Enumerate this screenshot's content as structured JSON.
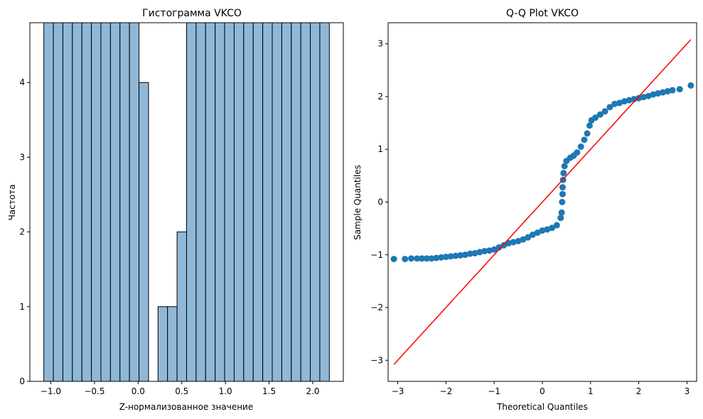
{
  "colors": {
    "bar_fill": "#8fb8d8",
    "bar_edge": "#000000",
    "point": "#1f77b4",
    "ref_line": "#ff0000",
    "axes": "#000000",
    "background": "#ffffff"
  },
  "chart_data": [
    {
      "type": "bar",
      "subtype": "histogram",
      "title": "Гистограмма VKCO",
      "xlabel": "Z-нормализованное значение",
      "ylabel": "Частота",
      "xlim": [
        -1.24,
        2.35
      ],
      "ylim": [
        0,
        4.8
      ],
      "xticks": [
        -1.0,
        -0.5,
        0.0,
        0.5,
        1.0,
        1.5,
        2.0
      ],
      "xtick_labels": [
        "−1.0",
        "−0.5",
        "0.0",
        "0.5",
        "1.0",
        "1.5",
        "2.0"
      ],
      "yticks": [
        0,
        1,
        2,
        3,
        4
      ],
      "ytick_labels": [
        "0",
        "1",
        "2",
        "3",
        "4"
      ],
      "bin_edges": [
        -1.08,
        -0.971,
        -0.862,
        -0.753,
        -0.644,
        -0.535,
        -0.426,
        -0.317,
        -0.208,
        -0.099,
        0.01,
        0.119,
        0.228,
        0.337,
        0.446,
        0.555,
        0.664,
        0.773,
        0.882,
        0.991,
        1.1,
        1.209,
        1.318,
        1.427,
        1.536,
        1.645,
        1.754,
        1.863,
        1.972,
        2.081,
        2.19
      ],
      "counts": [
        5,
        5,
        5,
        5,
        5,
        5,
        5,
        5,
        5,
        5,
        4,
        null,
        1,
        1,
        2,
        5,
        5,
        5,
        5,
        5,
        5,
        5,
        5,
        5,
        5,
        5,
        5,
        5,
        5,
        5
      ],
      "grid": false
    },
    {
      "type": "scatter",
      "subtype": "qq-plot",
      "title": "Q-Q Plot VKCO",
      "xlabel": "Theoretical Quantiles",
      "ylabel": "Sample Quantiles",
      "xlim": [
        -3.2,
        3.2
      ],
      "ylim": [
        -3.4,
        3.4
      ],
      "xticks": [
        -3,
        -2,
        -1,
        0,
        1,
        2,
        3
      ],
      "xtick_labels": [
        "−3",
        "−2",
        "−1",
        "0",
        "1",
        "2",
        "3"
      ],
      "yticks": [
        -3,
        -2,
        -1,
        0,
        1,
        2,
        3
      ],
      "ytick_labels": [
        "−3",
        "−2",
        "−1",
        "0",
        "1",
        "2",
        "3"
      ],
      "reference_line": {
        "x": [
          -3.08,
          3.08
        ],
        "y": [
          -3.08,
          3.08
        ]
      },
      "points": [
        {
          "x": -3.08,
          "y": -1.08
        },
        {
          "x": -2.85,
          "y": -1.08
        },
        {
          "x": -2.72,
          "y": -1.07
        },
        {
          "x": -2.6,
          "y": -1.07
        },
        {
          "x": -2.5,
          "y": -1.07
        },
        {
          "x": -2.4,
          "y": -1.07
        },
        {
          "x": -2.3,
          "y": -1.07
        },
        {
          "x": -2.2,
          "y": -1.06
        },
        {
          "x": -2.1,
          "y": -1.05
        },
        {
          "x": -2.0,
          "y": -1.04
        },
        {
          "x": -1.9,
          "y": -1.03
        },
        {
          "x": -1.8,
          "y": -1.02
        },
        {
          "x": -1.7,
          "y": -1.01
        },
        {
          "x": -1.6,
          "y": -1.0
        },
        {
          "x": -1.5,
          "y": -0.98
        },
        {
          "x": -1.4,
          "y": -0.97
        },
        {
          "x": -1.3,
          "y": -0.95
        },
        {
          "x": -1.2,
          "y": -0.93
        },
        {
          "x": -1.1,
          "y": -0.92
        },
        {
          "x": -1.0,
          "y": -0.9
        },
        {
          "x": -0.9,
          "y": -0.86
        },
        {
          "x": -0.8,
          "y": -0.82
        },
        {
          "x": -0.7,
          "y": -0.78
        },
        {
          "x": -0.6,
          "y": -0.76
        },
        {
          "x": -0.5,
          "y": -0.74
        },
        {
          "x": -0.4,
          "y": -0.71
        },
        {
          "x": -0.3,
          "y": -0.67
        },
        {
          "x": -0.2,
          "y": -0.62
        },
        {
          "x": -0.1,
          "y": -0.58
        },
        {
          "x": 0.0,
          "y": -0.54
        },
        {
          "x": 0.1,
          "y": -0.52
        },
        {
          "x": 0.2,
          "y": -0.49
        },
        {
          "x": 0.3,
          "y": -0.44
        },
        {
          "x": 0.38,
          "y": -0.3
        },
        {
          "x": 0.4,
          "y": -0.2
        },
        {
          "x": 0.41,
          "y": 0.0
        },
        {
          "x": 0.42,
          "y": 0.15
        },
        {
          "x": 0.42,
          "y": 0.28
        },
        {
          "x": 0.43,
          "y": 0.42
        },
        {
          "x": 0.44,
          "y": 0.55
        },
        {
          "x": 0.46,
          "y": 0.68
        },
        {
          "x": 0.5,
          "y": 0.78
        },
        {
          "x": 0.58,
          "y": 0.84
        },
        {
          "x": 0.65,
          "y": 0.88
        },
        {
          "x": 0.72,
          "y": 0.94
        },
        {
          "x": 0.8,
          "y": 1.05
        },
        {
          "x": 0.87,
          "y": 1.18
        },
        {
          "x": 0.93,
          "y": 1.3
        },
        {
          "x": 0.98,
          "y": 1.45
        },
        {
          "x": 1.02,
          "y": 1.55
        },
        {
          "x": 1.1,
          "y": 1.6
        },
        {
          "x": 1.2,
          "y": 1.66
        },
        {
          "x": 1.3,
          "y": 1.72
        },
        {
          "x": 1.4,
          "y": 1.8
        },
        {
          "x": 1.5,
          "y": 1.86
        },
        {
          "x": 1.6,
          "y": 1.88
        },
        {
          "x": 1.7,
          "y": 1.91
        },
        {
          "x": 1.8,
          "y": 1.93
        },
        {
          "x": 1.9,
          "y": 1.95
        },
        {
          "x": 2.0,
          "y": 1.97
        },
        {
          "x": 2.1,
          "y": 1.99
        },
        {
          "x": 2.2,
          "y": 2.01
        },
        {
          "x": 2.3,
          "y": 2.04
        },
        {
          "x": 2.4,
          "y": 2.06
        },
        {
          "x": 2.5,
          "y": 2.08
        },
        {
          "x": 2.6,
          "y": 2.1
        },
        {
          "x": 2.7,
          "y": 2.12
        },
        {
          "x": 2.85,
          "y": 2.14
        },
        {
          "x": 3.08,
          "y": 2.21
        }
      ],
      "grid": false
    }
  ]
}
